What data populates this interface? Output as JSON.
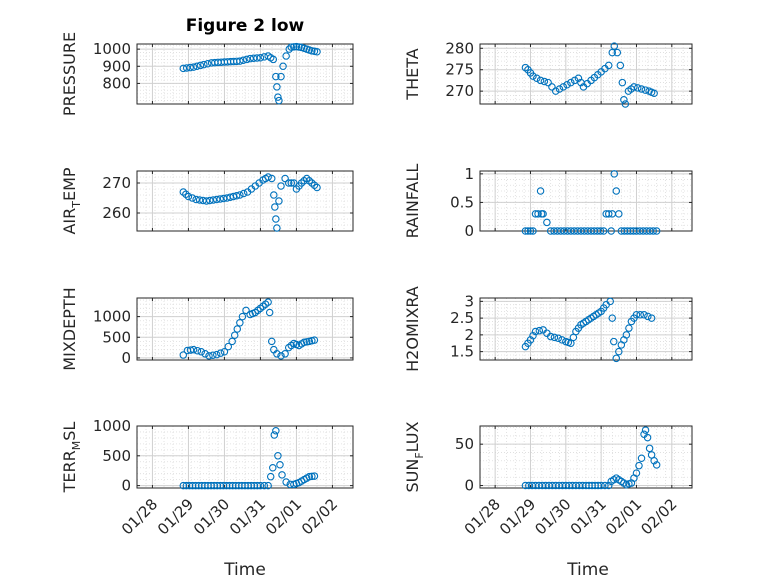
{
  "figure": {
    "title": "Figure 2 low",
    "xlabel": "Time",
    "marker_color": "#0072BD"
  },
  "chart_data": [
    {
      "type": "scatter",
      "ylabel": "PRESSURE",
      "ylabel_parts": [
        {
          "t": "PRESSURE"
        }
      ],
      "ylim": [
        680,
        1030
      ],
      "yticks": [
        800,
        900,
        1000
      ],
      "xlim": [
        0,
        4.2
      ],
      "xticks": [
        0.3,
        1.0,
        1.7,
        2.4,
        3.1,
        3.8
      ],
      "xticklabels": [
        "01/28",
        "01/29",
        "01/30",
        "01/31",
        "02/01",
        "02/02"
      ],
      "points": [
        [
          0.9,
          888
        ],
        [
          1.1,
          895
        ],
        [
          1.3,
          910
        ],
        [
          1.45,
          920
        ],
        [
          1.7,
          925
        ],
        [
          2.0,
          930
        ],
        [
          2.2,
          945
        ],
        [
          2.4,
          950
        ],
        [
          2.55,
          960
        ],
        [
          2.65,
          940
        ],
        [
          2.7,
          840
        ],
        [
          2.72,
          780
        ],
        [
          2.74,
          720
        ],
        [
          2.76,
          700
        ],
        [
          2.8,
          840
        ],
        [
          2.84,
          900
        ],
        [
          2.9,
          960
        ],
        [
          2.96,
          1000
        ],
        [
          3.0,
          1012
        ],
        [
          3.1,
          1015
        ],
        [
          3.2,
          1010
        ],
        [
          3.3,
          1000
        ],
        [
          3.4,
          990
        ],
        [
          3.5,
          985
        ]
      ]
    },
    {
      "type": "scatter",
      "ylabel": "THETA",
      "ylabel_parts": [
        {
          "t": "THETA"
        }
      ],
      "ylim": [
        267,
        281
      ],
      "yticks": [
        270,
        275,
        280
      ],
      "xlim": [
        0,
        4.2
      ],
      "xticks": [
        0.3,
        1.0,
        1.7,
        2.4,
        3.1,
        3.8
      ],
      "xticklabels": [
        "01/28",
        "01/29",
        "01/30",
        "01/31",
        "02/01",
        "02/02"
      ],
      "points": [
        [
          0.9,
          275.5
        ],
        [
          0.95,
          275
        ],
        [
          1.05,
          273.5
        ],
        [
          1.2,
          272.5
        ],
        [
          1.35,
          272
        ],
        [
          1.5,
          270
        ],
        [
          1.65,
          271
        ],
        [
          1.8,
          272
        ],
        [
          1.95,
          273
        ],
        [
          2.05,
          271
        ],
        [
          2.2,
          272.5
        ],
        [
          2.4,
          274.5
        ],
        [
          2.55,
          276
        ],
        [
          2.62,
          279
        ],
        [
          2.66,
          280.5
        ],
        [
          2.72,
          279
        ],
        [
          2.78,
          276
        ],
        [
          2.82,
          272
        ],
        [
          2.85,
          268
        ],
        [
          2.88,
          267
        ],
        [
          2.94,
          270
        ],
        [
          3.05,
          271
        ],
        [
          3.2,
          270.5
        ],
        [
          3.35,
          270
        ],
        [
          3.45,
          269.5
        ]
      ]
    },
    {
      "type": "scatter",
      "ylabel": "AIRTEMP",
      "ylabel_parts": [
        {
          "t": "AIR"
        },
        {
          "t": "T",
          "sub": true
        },
        {
          "t": "EMP"
        }
      ],
      "ylim": [
        254,
        274
      ],
      "yticks": [
        260,
        270
      ],
      "xlim": [
        0,
        4.2
      ],
      "xticks": [
        0.3,
        1.0,
        1.7,
        2.4,
        3.1,
        3.8
      ],
      "xticklabels": [
        "01/28",
        "01/29",
        "01/30",
        "01/31",
        "02/01",
        "02/02"
      ],
      "points": [
        [
          0.9,
          267
        ],
        [
          1.0,
          265.5
        ],
        [
          1.15,
          264.5
        ],
        [
          1.35,
          264
        ],
        [
          1.55,
          264.5
        ],
        [
          1.75,
          265
        ],
        [
          2.0,
          266
        ],
        [
          2.15,
          267
        ],
        [
          2.3,
          269
        ],
        [
          2.45,
          271
        ],
        [
          2.55,
          272
        ],
        [
          2.62,
          271.5
        ],
        [
          2.66,
          266
        ],
        [
          2.68,
          262
        ],
        [
          2.7,
          258
        ],
        [
          2.72,
          255
        ],
        [
          2.76,
          264
        ],
        [
          2.8,
          269
        ],
        [
          2.88,
          271.5
        ],
        [
          2.95,
          270
        ],
        [
          3.05,
          270
        ],
        [
          3.1,
          268
        ],
        [
          3.2,
          270
        ],
        [
          3.3,
          271.5
        ],
        [
          3.4,
          270
        ],
        [
          3.5,
          268.5
        ]
      ]
    },
    {
      "type": "scatter",
      "ylabel": "RAINFALL",
      "ylabel_parts": [
        {
          "t": "RAINFALL"
        }
      ],
      "ylim": [
        0,
        1.05
      ],
      "yticks": [
        0,
        0.5,
        1
      ],
      "xlim": [
        0,
        4.2
      ],
      "xticks": [
        0.3,
        1.0,
        1.7,
        2.4,
        3.1,
        3.8
      ],
      "xticklabels": [
        "01/28",
        "01/29",
        "01/30",
        "01/31",
        "02/01",
        "02/02"
      ],
      "points": [
        [
          0.9,
          0
        ],
        [
          1.0,
          0
        ],
        [
          1.05,
          0
        ],
        [
          1.1,
          0.3
        ],
        [
          1.15,
          0.3
        ],
        [
          1.2,
          0.7
        ],
        [
          1.22,
          0.3
        ],
        [
          1.25,
          0.3
        ],
        [
          1.4,
          0
        ],
        [
          1.8,
          0
        ],
        [
          2.2,
          0
        ],
        [
          2.45,
          0
        ],
        [
          2.5,
          0.3
        ],
        [
          2.55,
          0.3
        ],
        [
          2.6,
          0
        ],
        [
          2.62,
          0.3
        ],
        [
          2.66,
          1.0
        ],
        [
          2.7,
          0.7
        ],
        [
          2.75,
          0.3
        ],
        [
          2.8,
          0
        ],
        [
          3.1,
          0
        ],
        [
          3.5,
          0
        ]
      ]
    },
    {
      "type": "scatter",
      "ylabel": "MIXDEPTH",
      "ylabel_parts": [
        {
          "t": "MIXDEPTH"
        }
      ],
      "ylim": [
        -50,
        1450
      ],
      "yticks": [
        0,
        500,
        1000
      ],
      "xlim": [
        0,
        4.2
      ],
      "xticks": [
        0.3,
        1.0,
        1.7,
        2.4,
        3.1,
        3.8
      ],
      "xticklabels": [
        "01/28",
        "01/29",
        "01/30",
        "01/31",
        "02/01",
        "02/02"
      ],
      "points": [
        [
          0.9,
          70
        ],
        [
          0.98,
          180
        ],
        [
          1.1,
          200
        ],
        [
          1.25,
          150
        ],
        [
          1.4,
          50
        ],
        [
          1.55,
          80
        ],
        [
          1.7,
          150
        ],
        [
          1.85,
          400
        ],
        [
          1.95,
          700
        ],
        [
          2.05,
          1000
        ],
        [
          2.12,
          1150
        ],
        [
          2.2,
          1050
        ],
        [
          2.3,
          1100
        ],
        [
          2.4,
          1200
        ],
        [
          2.5,
          1300
        ],
        [
          2.55,
          1350
        ],
        [
          2.58,
          1100
        ],
        [
          2.62,
          400
        ],
        [
          2.66,
          200
        ],
        [
          2.72,
          100
        ],
        [
          2.8,
          50
        ],
        [
          2.88,
          100
        ],
        [
          2.95,
          250
        ],
        [
          3.05,
          350
        ],
        [
          3.15,
          300
        ],
        [
          3.25,
          380
        ],
        [
          3.35,
          400
        ],
        [
          3.45,
          430
        ]
      ]
    },
    {
      "type": "scatter",
      "ylabel": "H2OMIXRA",
      "ylabel_parts": [
        {
          "t": "H2OMIXRA"
        }
      ],
      "ylim": [
        1.25,
        3.1
      ],
      "yticks": [
        1.5,
        2,
        2.5,
        3
      ],
      "xlim": [
        0,
        4.2
      ],
      "xticks": [
        0.3,
        1.0,
        1.7,
        2.4,
        3.1,
        3.8
      ],
      "xticklabels": [
        "01/28",
        "01/29",
        "01/30",
        "01/31",
        "02/01",
        "02/02"
      ],
      "points": [
        [
          0.9,
          1.65
        ],
        [
          1.0,
          1.85
        ],
        [
          1.1,
          2.1
        ],
        [
          1.25,
          2.15
        ],
        [
          1.4,
          1.95
        ],
        [
          1.55,
          1.9
        ],
        [
          1.7,
          1.8
        ],
        [
          1.8,
          1.75
        ],
        [
          1.9,
          2.1
        ],
        [
          2.0,
          2.3
        ],
        [
          2.1,
          2.4
        ],
        [
          2.2,
          2.5
        ],
        [
          2.3,
          2.6
        ],
        [
          2.4,
          2.7
        ],
        [
          2.5,
          2.9
        ],
        [
          2.58,
          3.0
        ],
        [
          2.62,
          2.5
        ],
        [
          2.65,
          1.8
        ],
        [
          2.7,
          1.3
        ],
        [
          2.75,
          1.5
        ],
        [
          2.8,
          1.7
        ],
        [
          2.9,
          2.0
        ],
        [
          3.0,
          2.4
        ],
        [
          3.1,
          2.6
        ],
        [
          3.25,
          2.6
        ],
        [
          3.4,
          2.5
        ]
      ]
    },
    {
      "type": "scatter",
      "ylabel": "TERRMSL",
      "ylabel_parts": [
        {
          "t": "TERR"
        },
        {
          "t": "M",
          "sub": true
        },
        {
          "t": "SL"
        }
      ],
      "ylim": [
        -40,
        1000
      ],
      "yticks": [
        0,
        500,
        1000
      ],
      "xlim": [
        0,
        4.2
      ],
      "xticks": [
        0.3,
        1.0,
        1.7,
        2.4,
        3.1,
        3.8
      ],
      "xticklabels": [
        "01/28",
        "01/29",
        "01/30",
        "01/31",
        "02/01",
        "02/02"
      ],
      "points": [
        [
          0.9,
          0
        ],
        [
          1.2,
          0
        ],
        [
          1.5,
          0
        ],
        [
          1.8,
          0
        ],
        [
          2.1,
          0
        ],
        [
          2.4,
          0
        ],
        [
          2.55,
          0
        ],
        [
          2.6,
          150
        ],
        [
          2.64,
          300
        ],
        [
          2.67,
          850
        ],
        [
          2.7,
          920
        ],
        [
          2.74,
          500
        ],
        [
          2.78,
          350
        ],
        [
          2.82,
          180
        ],
        [
          2.9,
          60
        ],
        [
          2.98,
          20
        ],
        [
          3.05,
          20
        ],
        [
          3.15,
          50
        ],
        [
          3.25,
          100
        ],
        [
          3.35,
          150
        ],
        [
          3.45,
          160
        ]
      ]
    },
    {
      "type": "scatter",
      "ylabel": "SUNFLUX",
      "ylabel_parts": [
        {
          "t": "SUN"
        },
        {
          "t": "F",
          "sub": true
        },
        {
          "t": "LUX"
        }
      ],
      "ylim": [
        -3,
        72
      ],
      "yticks": [
        0,
        50
      ],
      "xlim": [
        0,
        4.2
      ],
      "xticks": [
        0.3,
        1.0,
        1.7,
        2.4,
        3.1,
        3.8
      ],
      "xticklabels": [
        "01/28",
        "01/29",
        "01/30",
        "01/31",
        "02/01",
        "02/02"
      ],
      "points": [
        [
          0.9,
          0
        ],
        [
          1.3,
          0
        ],
        [
          1.7,
          0
        ],
        [
          2.1,
          0
        ],
        [
          2.4,
          0
        ],
        [
          2.55,
          0
        ],
        [
          2.6,
          5
        ],
        [
          2.7,
          9
        ],
        [
          2.8,
          5
        ],
        [
          2.9,
          1
        ],
        [
          3.0,
          3
        ],
        [
          3.1,
          15
        ],
        [
          3.2,
          33
        ],
        [
          3.25,
          62
        ],
        [
          3.28,
          67
        ],
        [
          3.32,
          58
        ],
        [
          3.36,
          45
        ],
        [
          3.4,
          37
        ],
        [
          3.45,
          30
        ],
        [
          3.5,
          25
        ]
      ]
    }
  ]
}
